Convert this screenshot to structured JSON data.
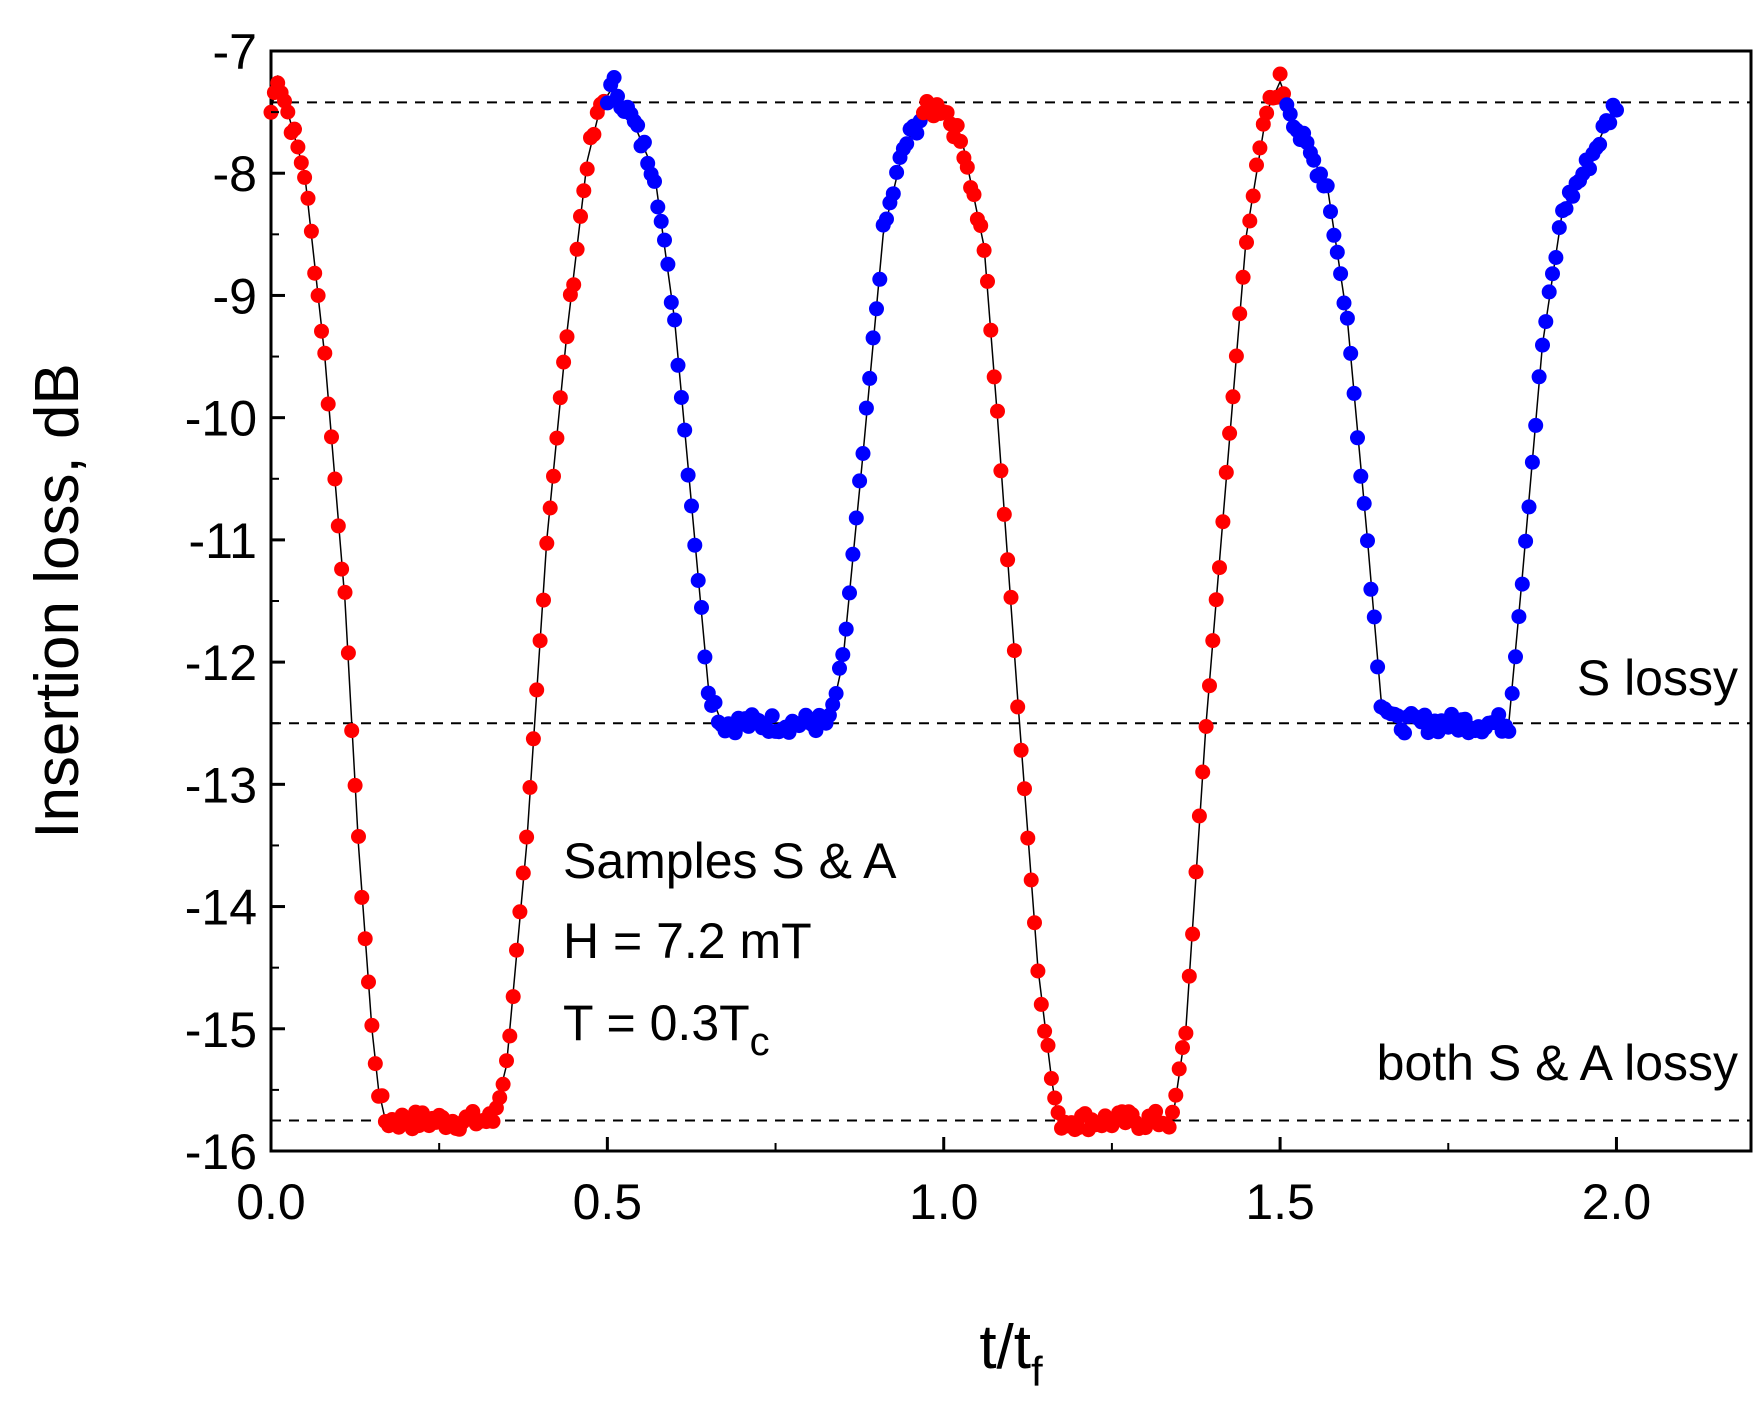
{
  "chart_data": {
    "type": "scatter",
    "title": "",
    "xlabel": "t/t",
    "xlabel_sub": "f",
    "ylabel": "Insertion loss, dB",
    "xlim": [
      0,
      2.2
    ],
    "ylim": [
      -16,
      -7
    ],
    "xticks": [
      0.0,
      0.5,
      1.0,
      1.5,
      2.0
    ],
    "xtick_labels": [
      "0.0",
      "0.5",
      "1.0",
      "1.5",
      "2.0"
    ],
    "yticks": [
      -16,
      -15,
      -14,
      -13,
      -12,
      -11,
      -10,
      -9,
      -8,
      -7
    ],
    "ytick_labels": [
      "-16",
      "-15",
      "-14",
      "-13",
      "-12",
      "-11",
      "-10",
      "-9",
      "-8",
      "-7"
    ],
    "grid": false,
    "reference_lines": [
      {
        "y": -7.42,
        "style": "dashed"
      },
      {
        "y": -12.5,
        "style": "dashed"
      },
      {
        "y": -15.75,
        "style": "dashed"
      }
    ],
    "annotations": {
      "info_lines": [
        "Samples S & A",
        "H = 7.2 mT",
        "T = 0.3T"
      ],
      "info_sub": "c",
      "s_lossy": "S lossy",
      "both_lossy": "both S & A lossy"
    },
    "curve_keypoints": [
      [
        0.0,
        -7.5
      ],
      [
        0.01,
        -7.2
      ],
      [
        0.05,
        -8.0
      ],
      [
        0.08,
        -9.5
      ],
      [
        0.11,
        -11.5
      ],
      [
        0.13,
        -13.5
      ],
      [
        0.15,
        -15.0
      ],
      [
        0.16,
        -15.5
      ],
      [
        0.17,
        -15.75
      ],
      [
        0.33,
        -15.75
      ],
      [
        0.35,
        -15.3
      ],
      [
        0.38,
        -13.5
      ],
      [
        0.41,
        -11.0
      ],
      [
        0.44,
        -9.3
      ],
      [
        0.47,
        -7.9
      ],
      [
        0.49,
        -7.45
      ],
      [
        0.51,
        -7.28
      ],
      [
        0.54,
        -7.6
      ],
      [
        0.57,
        -8.0
      ],
      [
        0.6,
        -9.2
      ],
      [
        0.63,
        -11.0
      ],
      [
        0.65,
        -12.2
      ],
      [
        0.67,
        -12.5
      ],
      [
        0.83,
        -12.5
      ],
      [
        0.85,
        -12.0
      ],
      [
        0.88,
        -10.3
      ],
      [
        0.91,
        -8.5
      ],
      [
        0.94,
        -7.8
      ],
      [
        0.97,
        -7.5
      ],
      [
        1.0,
        -7.45
      ],
      [
        1.03,
        -7.8
      ],
      [
        1.06,
        -8.6
      ],
      [
        1.08,
        -10.0
      ],
      [
        1.11,
        -12.3
      ],
      [
        1.14,
        -14.5
      ],
      [
        1.16,
        -15.4
      ],
      [
        1.17,
        -15.75
      ],
      [
        1.34,
        -15.75
      ],
      [
        1.36,
        -15.0
      ],
      [
        1.39,
        -12.5
      ],
      [
        1.42,
        -10.5
      ],
      [
        1.45,
        -8.5
      ],
      [
        1.48,
        -7.5
      ],
      [
        1.5,
        -7.25
      ],
      [
        1.53,
        -7.7
      ],
      [
        1.57,
        -8.1
      ],
      [
        1.6,
        -9.2
      ],
      [
        1.63,
        -11.0
      ],
      [
        1.65,
        -12.3
      ],
      [
        1.67,
        -12.5
      ],
      [
        1.84,
        -12.5
      ],
      [
        1.86,
        -11.3
      ],
      [
        1.89,
        -9.4
      ],
      [
        1.92,
        -8.3
      ],
      [
        1.96,
        -7.9
      ],
      [
        2.0,
        -7.42
      ]
    ],
    "series": [
      {
        "name": "both S & A lossy segments",
        "color": "#ff0000",
        "x_ranges": [
          [
            0.0,
            0.5
          ],
          [
            0.97,
            1.51
          ]
        ]
      },
      {
        "name": "S lossy segments",
        "color": "#0000ff",
        "x_ranges": [
          [
            0.5,
            0.97
          ],
          [
            1.51,
            2.0
          ]
        ]
      }
    ],
    "line_color": "#000000"
  }
}
